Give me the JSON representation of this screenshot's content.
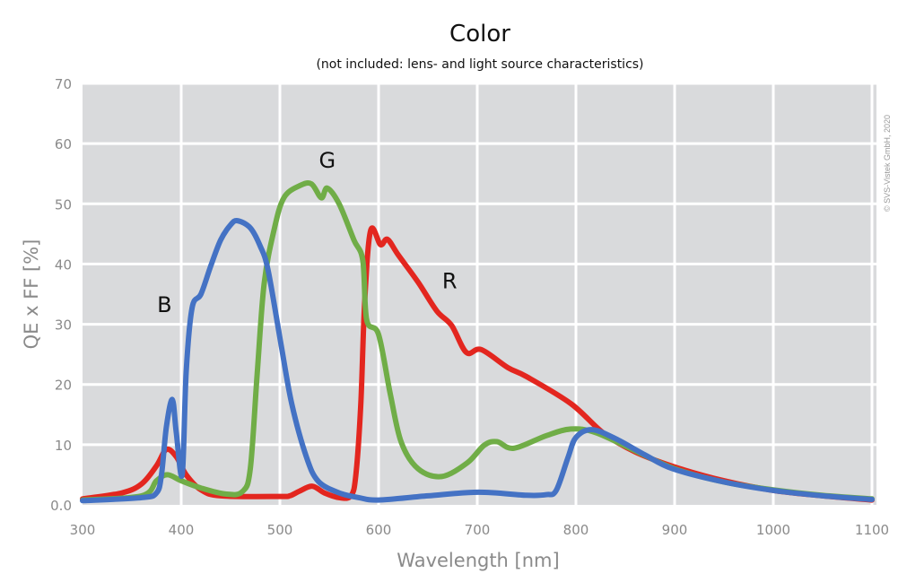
{
  "chart_data": {
    "type": "line",
    "title": "Color",
    "subtitle": "(not included: lens- and light source characteristics)",
    "xlabel": "Wavelength [nm]",
    "ylabel": "QE x FF [%]",
    "xlim": [
      300,
      1100
    ],
    "ylim": [
      0,
      70
    ],
    "x_ticks": [
      "300",
      "400",
      "500",
      "600",
      "700",
      "800",
      "900",
      "1000",
      "1100"
    ],
    "y_ticks": [
      "0.0",
      "10",
      "20",
      "30",
      "40",
      "50",
      "60",
      "70"
    ],
    "grid": true,
    "copyright": "© SVS-Vistek GmbH, 2020",
    "background_color": "#d9dadc",
    "series": [
      {
        "name": "R",
        "color": "#e3261f",
        "x": [
          300,
          340,
          360,
          375,
          385,
          395,
          405,
          420,
          440,
          500,
          510,
          520,
          533,
          545,
          560,
          572,
          577,
          582,
          586,
          592,
          602,
          609,
          620,
          640,
          659,
          674,
          689,
          704,
          731,
          750,
          795,
          828,
          860,
          900,
          950,
          1000,
          1050,
          1100
        ],
        "y": [
          1,
          2,
          3.5,
          6.5,
          9.2,
          8,
          5,
          2.5,
          1.5,
          1.4,
          1.5,
          2.3,
          3.1,
          2,
          1.2,
          1.5,
          5,
          16.8,
          34,
          45.6,
          43.2,
          44.1,
          41.5,
          37,
          32.2,
          29.8,
          25.3,
          25.8,
          22.8,
          21.3,
          16.8,
          11.9,
          8.8,
          6.3,
          4,
          2.4,
          1.5,
          0.8
        ]
      },
      {
        "name": "G",
        "color": "#70ad47",
        "x": [
          300,
          360,
          375,
          386,
          400,
          420,
          445,
          462,
          470,
          477,
          484,
          494,
          504,
          520,
          532,
          542,
          548,
          560,
          575,
          584,
          588,
          600,
          612,
          623,
          640,
          664,
          690,
          707,
          720,
          737,
          770,
          795,
          820,
          860,
          900,
          950,
          1000,
          1050,
          1100
        ],
        "y": [
          0.8,
          1.5,
          4,
          5,
          4,
          2.8,
          1.8,
          2.2,
          6,
          21.8,
          36.7,
          45.6,
          51,
          53,
          53.3,
          51,
          52.6,
          50,
          44,
          40.6,
          30.7,
          28.3,
          18.3,
          10.4,
          6,
          4.7,
          7,
          9.9,
          10.5,
          9.4,
          11.5,
          12.6,
          12,
          9,
          6,
          3.8,
          2.5,
          1.6,
          1
        ]
      },
      {
        "name": "B",
        "color": "#4472c4",
        "x": [
          300,
          360,
          375,
          380,
          385,
          391,
          395,
          401,
          405,
          411,
          420,
          430,
          440,
          450,
          457,
          470,
          480,
          488,
          501,
          512,
          527,
          539,
          560,
          580,
          600,
          650,
          701,
          750,
          770,
          780,
          792,
          800,
          816,
          840,
          870,
          898,
          950,
          1000,
          1050,
          1100
        ],
        "y": [
          0.7,
          1.2,
          2,
          5,
          13,
          17.5,
          12,
          5,
          22,
          32.7,
          35,
          39.7,
          44,
          46.5,
          47.2,
          46,
          43,
          39,
          26.8,
          16.8,
          7.9,
          3.9,
          2,
          1.2,
          0.8,
          1.5,
          2.1,
          1.6,
          1.7,
          2.4,
          7.9,
          11.2,
          12.5,
          11,
          8.3,
          6,
          3.8,
          2.4,
          1.5,
          0.9
        ]
      }
    ],
    "annotations": [
      {
        "text": "B",
        "x": 383,
        "y": 32
      },
      {
        "text": "G",
        "x": 548,
        "y": 56
      },
      {
        "text": "R",
        "x": 672,
        "y": 36
      }
    ]
  }
}
